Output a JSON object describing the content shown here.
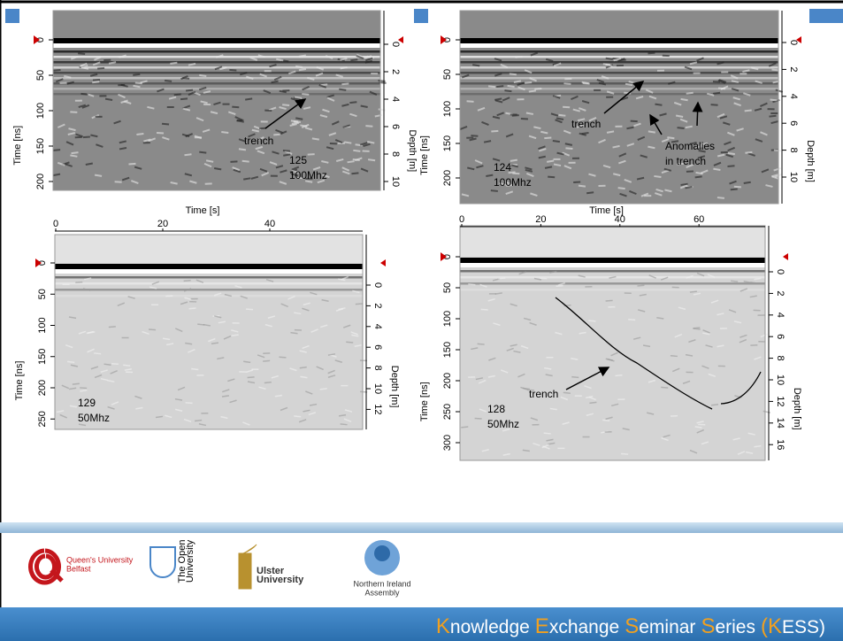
{
  "slide": {
    "panels": [
      {
        "id": "125",
        "frequency": "100Mhz",
        "time_axis": {
          "title": "Time [ns]",
          "ticks": [
            0,
            50,
            100,
            150,
            200
          ]
        },
        "depth_axis": {
          "title": "Depth [m]",
          "ticks": [
            0,
            2,
            4,
            6,
            8,
            10
          ]
        },
        "annotations": [
          {
            "lines": [
              "trench"
            ]
          }
        ]
      },
      {
        "id": "124",
        "frequency": "100Mhz",
        "time_axis": {
          "title": "Time [ns]",
          "ticks": [
            0,
            50,
            100,
            150,
            200
          ]
        },
        "depth_axis": {
          "title": "Depth [m]",
          "ticks": [
            0,
            2,
            4,
            6,
            8,
            10
          ]
        },
        "annotations": [
          {
            "lines": [
              "trench"
            ]
          },
          {
            "lines": [
              "Anomalies",
              "in trench"
            ]
          }
        ]
      },
      {
        "id": "129",
        "frequency": "50Mhz",
        "time_axis": {
          "title": "Time [ns]",
          "ticks": [
            0,
            50,
            100,
            150,
            200,
            250
          ]
        },
        "depth_axis": {
          "title": "Depth [m]",
          "ticks": [
            0,
            2,
            4,
            6,
            8,
            10,
            12
          ]
        },
        "distance_axis": {
          "title": "Time [s]",
          "ticks": [
            0,
            20,
            40
          ]
        },
        "annotations": []
      },
      {
        "id": "128",
        "frequency": "50Mhz",
        "time_axis": {
          "title": "Time [ns]",
          "ticks": [
            0,
            50,
            100,
            150,
            200,
            250,
            300
          ]
        },
        "depth_axis": {
          "title": "Depth [m]",
          "ticks": [
            0,
            2,
            4,
            6,
            8,
            10,
            12,
            14,
            16
          ]
        },
        "distance_axis": {
          "title": "Time [s]",
          "ticks": [
            0,
            20,
            40,
            60
          ]
        },
        "annotations": [
          {
            "lines": [
              "trench"
            ]
          }
        ]
      }
    ],
    "footer": {
      "logos": [
        {
          "lines": [
            "Queen's University",
            "Belfast"
          ]
        },
        {
          "lines": [
            "The Open",
            "University"
          ]
        },
        {
          "lines": [
            "Ulster",
            "University"
          ]
        },
        {
          "lines": [
            "Northern Ireland",
            "Assembly"
          ]
        }
      ],
      "series_title": [
        "Knowledge",
        "Exchange",
        "Seminar",
        "Series",
        "(KESS)"
      ]
    }
  }
}
